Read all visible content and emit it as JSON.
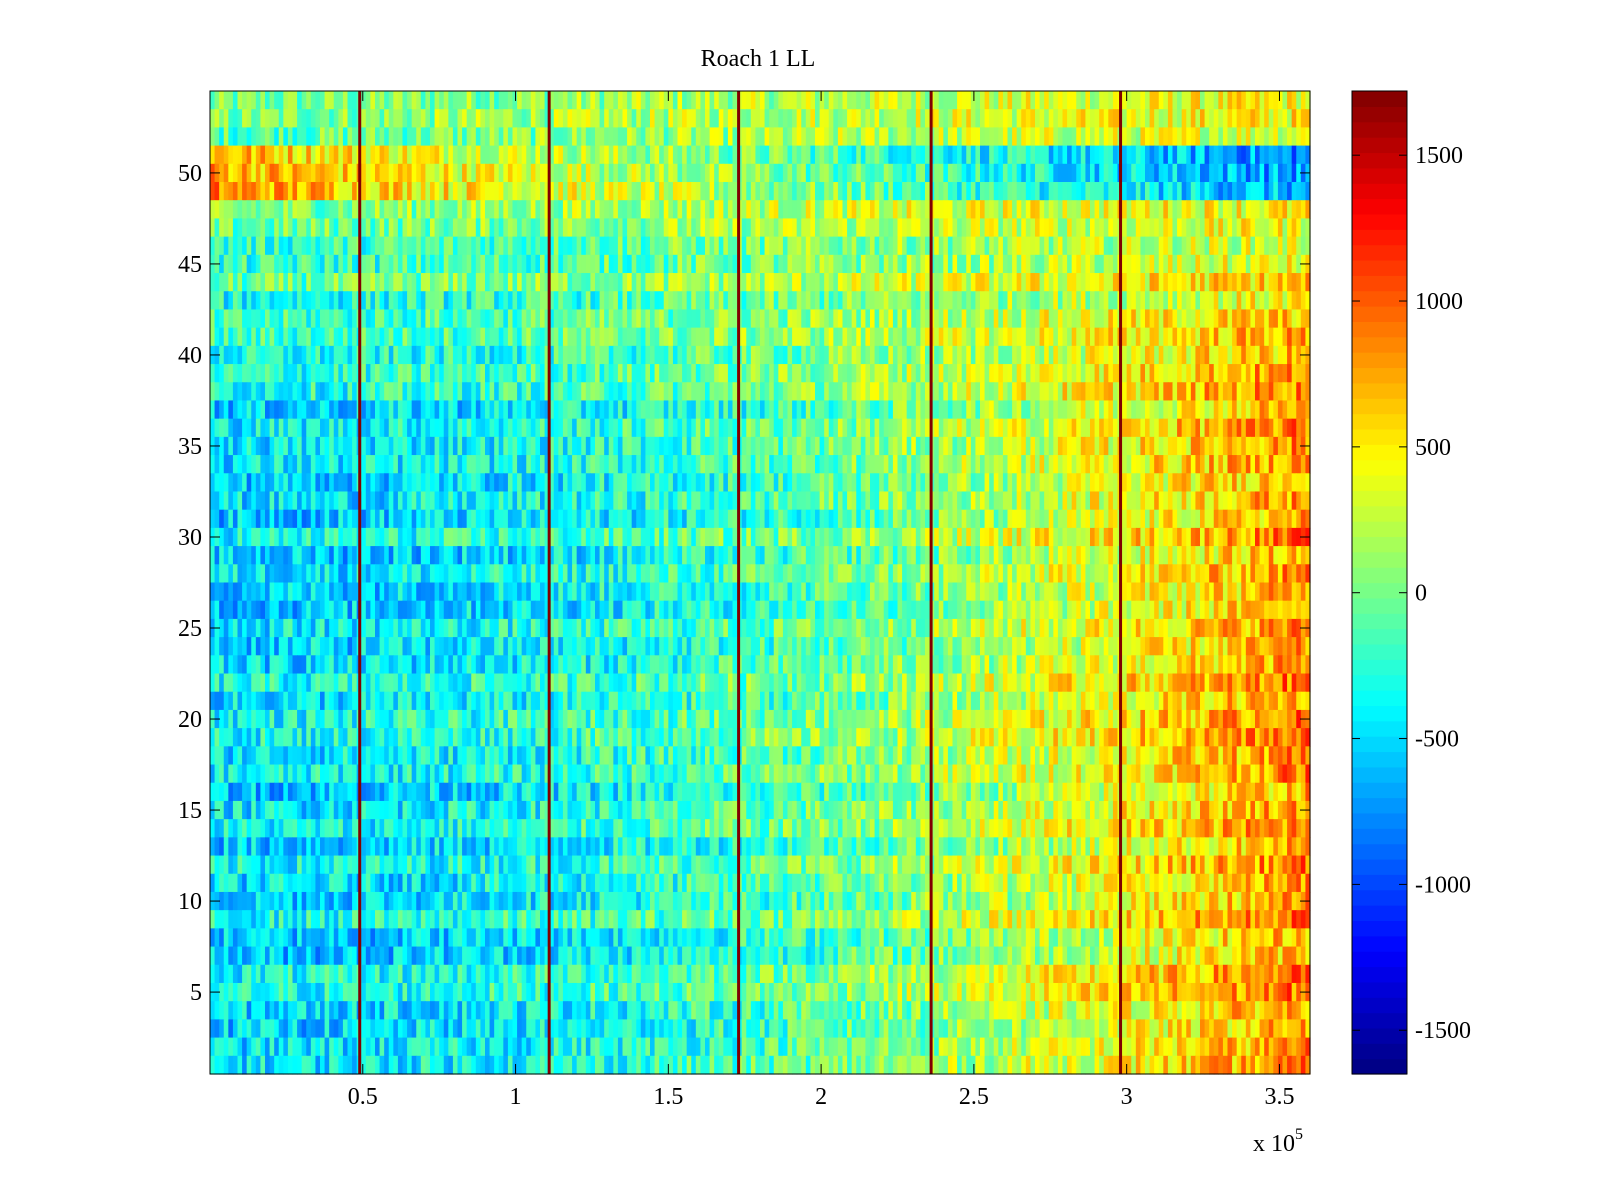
{
  "chart_data": {
    "type": "heatmap",
    "title": "Roach 1 LL",
    "xlabel": "",
    "ylabel": "",
    "x_multiplier_label": "x 10",
    "x_multiplier_exponent": "5",
    "xlim": [
      0,
      3.6
    ],
    "ylim": [
      0.5,
      54.5
    ],
    "x_ticks": [
      0.5,
      1,
      1.5,
      2,
      2.5,
      3,
      3.5
    ],
    "x_tick_labels": [
      "0.5",
      "1",
      "1.5",
      "2",
      "2.5",
      "3",
      "3.5"
    ],
    "y_ticks": [
      5,
      10,
      15,
      20,
      25,
      30,
      35,
      40,
      45,
      50
    ],
    "y_tick_labels": [
      "5",
      "10",
      "15",
      "20",
      "25",
      "30",
      "35",
      "40",
      "45",
      "50"
    ],
    "rows": 54,
    "colorbar": {
      "colormap": "jet",
      "clim": [
        -1650,
        1720
      ],
      "ticks": [
        -1500,
        -1000,
        -500,
        0,
        500,
        1000,
        1500
      ],
      "tick_labels": [
        "-1500",
        "-1000",
        "-500",
        "0",
        "500",
        "1000",
        "1500"
      ]
    },
    "dark_vertical_lines_x": [
      0.49,
      1.11,
      1.73,
      2.36,
      2.98
    ],
    "dark_line_value": 1720,
    "trend_summary": "values rise from about -500 (blue) on the left to about +900 (orange) on the right for upper rows; rows 4-6 are high (~+800) on the left and low (~-700) on the right"
  },
  "colors": {
    "axes": "#000000",
    "background": "#ffffff"
  }
}
